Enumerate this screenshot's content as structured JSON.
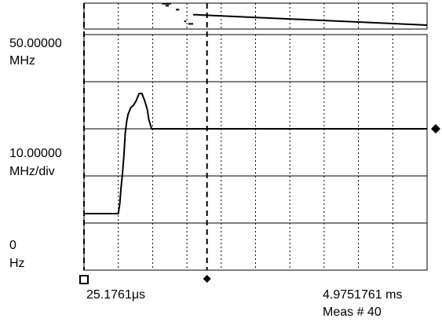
{
  "chart_data": {
    "type": "line",
    "title": "",
    "y_axis": {
      "top_value": "50.00000",
      "top_unit": "MHz",
      "scale_value": "10.00000",
      "scale_unit": "MHz/div",
      "bottom_value": "0",
      "bottom_unit": "Hz",
      "unit": "MHz",
      "ylim": [
        0,
        50
      ],
      "divisions": 5
    },
    "x_axis": {
      "start_label": "25.1761μs",
      "end_label": "4.9751761 ms",
      "unit": "ms",
      "xlim": [
        0.0251761,
        4.9751761
      ],
      "divisions": 10
    },
    "meas_label": "Meas # 40",
    "markers": [
      {
        "name": "square-marker",
        "symbol": "square",
        "x": 0.0251761
      },
      {
        "name": "diamond-marker",
        "symbol": "diamond",
        "x": 1.8
      }
    ],
    "right_marker_y": 30,
    "grid": true,
    "main_trace": {
      "x": [
        0.0251761,
        0.52,
        0.54,
        0.56,
        0.58,
        0.6,
        0.62,
        0.64,
        0.66,
        0.7,
        0.74,
        0.78,
        0.82,
        0.86,
        0.9,
        0.94,
        0.96,
        1.0,
        1.04,
        1.1,
        2.0,
        3.0,
        4.0,
        4.9751761
      ],
      "y": [
        12.0,
        12.0,
        14.0,
        17.5,
        20.5,
        24.0,
        29.0,
        31.5,
        33.0,
        34.5,
        35.0,
        36.0,
        37.5,
        37.5,
        36.0,
        34.0,
        32.0,
        30.0,
        30.0,
        30.0,
        30.0,
        30.0,
        30.0,
        30.0
      ]
    },
    "overview_trace": {
      "segments": [
        {
          "x": [
            1.15,
            1.28
          ],
          "y": [
            0.98,
            0.98
          ]
        },
        {
          "x": [
            1.2,
            1.25
          ],
          "y": [
            0.9,
            0.9
          ]
        },
        {
          "x": [
            1.35,
            1.4
          ],
          "y": [
            0.75,
            0.75
          ]
        },
        {
          "x": [
            1.47,
            1.5
          ],
          "y": [
            0.3,
            0.3
          ]
        },
        {
          "x": [
            1.53,
            1.6
          ],
          "y": [
            0.2,
            0.2
          ]
        },
        {
          "x": [
            1.6,
            1.65,
            4.9751761
          ],
          "y": [
            0.55,
            0.55,
            0.15
          ]
        }
      ],
      "ylim": [
        0,
        1
      ]
    },
    "colors": {
      "trace": "#000000",
      "grid": "#000000",
      "background": "#ffffff"
    }
  }
}
